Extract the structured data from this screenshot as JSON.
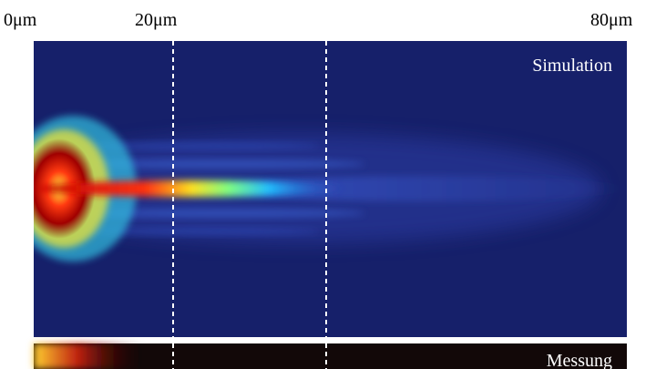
{
  "scale_labels": [
    "0μm",
    "20μm",
    "80μm"
  ],
  "panels": [
    {
      "label": "Simulation"
    },
    {
      "label": "Messung"
    }
  ]
}
